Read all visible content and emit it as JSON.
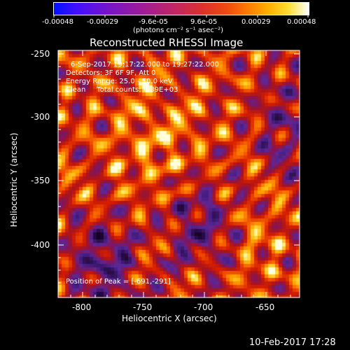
{
  "colorbar": {
    "tick_labels": [
      "-0.00048",
      "-0.00029",
      "-9.6e-05",
      "9.6e-05",
      "0.00029",
      "0.00048"
    ],
    "units_label": "(photons cm⁻² s⁻¹ asec⁻²)"
  },
  "title": "Reconstructed RHESSI Image",
  "annotations": {
    "time_range": "6-Sep-2017 19:17:22.000 to 19:27:22.000",
    "detectors": "Detectors: 3F 6F 9F, Att 0",
    "energy_range": "Energy Range: 25.0 - 50.0 keV",
    "method_counts": "Clean     Total counts: 4.39E+03",
    "peak_position": "Position of Peak = [-691,-291]"
  },
  "axes": {
    "xlabel": "Heliocentric X (arcsec)",
    "ylabel": "Heliocentric Y (arcsec)",
    "xticks": [
      "-800",
      "-750",
      "-700",
      "-650"
    ],
    "yticks": [
      "-250",
      "-300",
      "-350",
      "-400"
    ],
    "xlim": [
      -820,
      -625
    ],
    "ylim": [
      -445,
      -245
    ]
  },
  "footer": {
    "timestamp": "10-Feb-2017 17:28"
  }
}
